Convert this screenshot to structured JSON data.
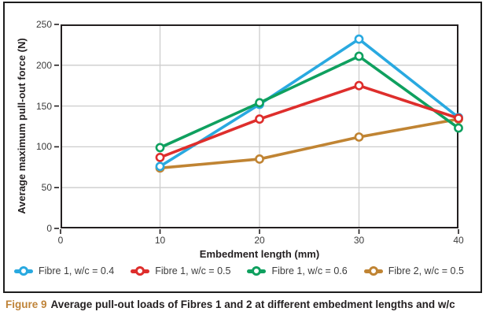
{
  "figure": {
    "caption_label": "Figure 9",
    "caption_text": "Average pull-out loads of Fibres 1 and 2 at different embedment lengths and w/c"
  },
  "chart_data": {
    "type": "line",
    "title": "",
    "xlabel": "Embedment length (mm)",
    "ylabel": "Average maximum pull-out force (N)",
    "x": [
      10,
      20,
      30,
      40
    ],
    "xlim": [
      0,
      40
    ],
    "ylim": [
      0,
      250
    ],
    "x_ticks": [
      0,
      10,
      20,
      30,
      40
    ],
    "y_ticks": [
      0,
      50,
      100,
      150,
      200,
      250
    ],
    "grid": true,
    "legend_position": "bottom-inside",
    "series": [
      {
        "name": "Fibre 1, w/c = 0.4",
        "color": "#29a9e0",
        "values": [
          76,
          152,
          232,
          136
        ]
      },
      {
        "name": "Fibre 1, w/c = 0.5",
        "color": "#de2e2c",
        "values": [
          87,
          134,
          175,
          135
        ]
      },
      {
        "name": "Fibre 1, w/c = 0.6",
        "color": "#0fa05f",
        "values": [
          99,
          154,
          211,
          123
        ]
      },
      {
        "name": "Fibre 2, w/c = 0.5",
        "color": "#c08433",
        "values": [
          74,
          85,
          112,
          134
        ]
      }
    ],
    "draw_order": [
      3,
      0,
      2,
      1
    ],
    "colors": {
      "grid": "#cccccc",
      "axis": "#231f20",
      "tick_text": "#3c3c3c"
    }
  }
}
